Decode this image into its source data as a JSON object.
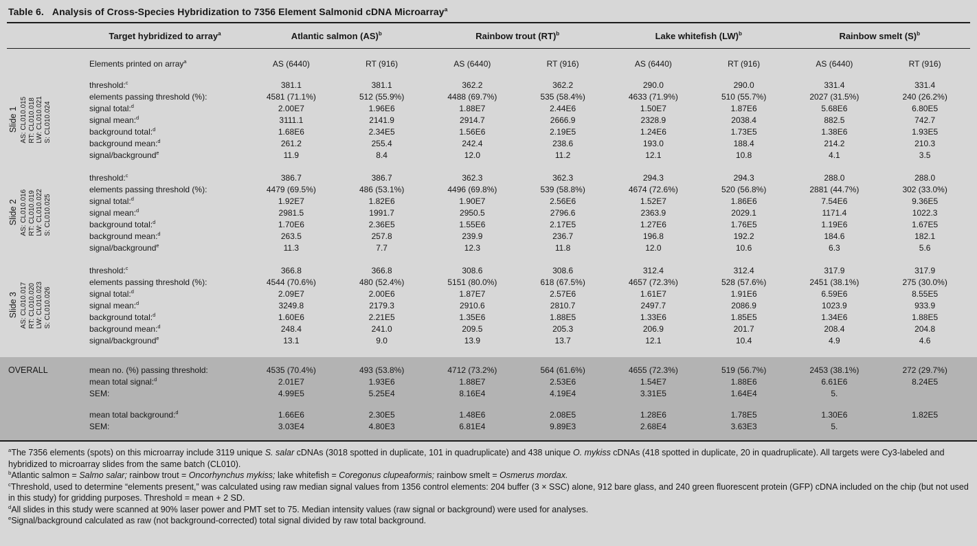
{
  "colors": {
    "page_bg": "#d7d7d7",
    "overall_band_bg": "#b3b3b3",
    "text": "#161616",
    "rule": "#1c1c1c"
  },
  "title": {
    "label": "Table 6.",
    "text": "Analysis of Cross-Species Hybridization to 7356 Element Salmonid cDNA Microarray",
    "sup": "a"
  },
  "header": {
    "target_col": {
      "text": "Target hybridized to array",
      "sup": "a"
    },
    "groups": [
      {
        "text": "Atlantic salmon (AS)",
        "sup": "b"
      },
      {
        "text": "Rainbow trout (RT)",
        "sup": "b"
      },
      {
        "text": "Lake whitefish (LW)",
        "sup": "b"
      },
      {
        "text": "Rainbow smelt (S)",
        "sup": "b"
      }
    ],
    "elements_label": {
      "text": "Elements printed on array",
      "sup": "a"
    },
    "subcolumns": [
      "AS (6440)",
      "RT (916)",
      "AS (6440)",
      "RT (916)",
      "AS (6440)",
      "RT (916)",
      "AS (6440)",
      "RT (916)"
    ]
  },
  "row_labels": [
    {
      "text": "threshold:",
      "sup": "c"
    },
    {
      "text": "elements passing threshold (%):",
      "sup": ""
    },
    {
      "text": "signal total:",
      "sup": "d"
    },
    {
      "text": "signal mean:",
      "sup": "d"
    },
    {
      "text": "background total:",
      "sup": "d"
    },
    {
      "text": "background mean:",
      "sup": "d"
    },
    {
      "text": "signal/background",
      "sup": "e"
    }
  ],
  "slides": [
    {
      "name": "Slide 1",
      "ids": [
        "AS: CL010.015",
        "RT: CL010.018",
        "LW: CL010.021",
        "S: CL010.024"
      ],
      "values": [
        [
          "381.1",
          "381.1",
          "362.2",
          "362.2",
          "290.0",
          "290.0",
          "331.4",
          "331.4"
        ],
        [
          "4581 (71.1%)",
          "512 (55.9%)",
          "4488 (69.7%)",
          "535 (58.4%)",
          "4633 (71.9%)",
          "510 (55.7%)",
          "2027 (31.5%)",
          "240 (26.2%)"
        ],
        [
          "2.00E7",
          "1.96E6",
          "1.88E7",
          "2.44E6",
          "1.50E7",
          "1.87E6",
          "5.68E6",
          "6.80E5"
        ],
        [
          "3111.1",
          "2141.9",
          "2914.7",
          "2666.9",
          "2328.9",
          "2038.4",
          "882.5",
          "742.7"
        ],
        [
          "1.68E6",
          "2.34E5",
          "1.56E6",
          "2.19E5",
          "1.24E6",
          "1.73E5",
          "1.38E6",
          "1.93E5"
        ],
        [
          "261.2",
          "255.4",
          "242.4",
          "238.6",
          "193.0",
          "188.4",
          "214.2",
          "210.3"
        ],
        [
          "11.9",
          "8.4",
          "12.0",
          "11.2",
          "12.1",
          "10.8",
          "4.1",
          "3.5"
        ]
      ]
    },
    {
      "name": "Slide 2",
      "ids": [
        "AS: CL010.016",
        "RT: CL010.019",
        "LW: CL010.022",
        "S: CL010.025"
      ],
      "values": [
        [
          "386.7",
          "386.7",
          "362.3",
          "362.3",
          "294.3",
          "294.3",
          "288.0",
          "288.0"
        ],
        [
          "4479 (69.5%)",
          "486 (53.1%)",
          "4496 (69.8%)",
          "539 (58.8%)",
          "4674 (72.6%)",
          "520 (56.8%)",
          "2881 (44.7%)",
          "302 (33.0%)"
        ],
        [
          "1.92E7",
          "1.82E6",
          "1.90E7",
          "2.56E6",
          "1.52E7",
          "1.86E6",
          "7.54E6",
          "9.36E5"
        ],
        [
          "2981.5",
          "1991.7",
          "2950.5",
          "2796.6",
          "2363.9",
          "2029.1",
          "1171.4",
          "1022.3"
        ],
        [
          "1.70E6",
          "2.36E5",
          "1.55E6",
          "2.17E5",
          "1.27E6",
          "1.76E5",
          "1.19E6",
          "1.67E5"
        ],
        [
          "263.5",
          "257.8",
          "239.9",
          "236.7",
          "196.8",
          "192.2",
          "184.6",
          "182.1"
        ],
        [
          "11.3",
          "7.7",
          "12.3",
          "11.8",
          "12.0",
          "10.6",
          "6.3",
          "5.6"
        ]
      ]
    },
    {
      "name": "Slide 3",
      "ids": [
        "AS: CL010.017",
        "RT: CL010.020",
        "LW: CL010.023",
        "S: CL010.026"
      ],
      "values": [
        [
          "366.8",
          "366.8",
          "308.6",
          "308.6",
          "312.4",
          "312.4",
          "317.9",
          "317.9"
        ],
        [
          "4544 (70.6%)",
          "480 (52.4%)",
          "5151 (80.0%)",
          "618 (67.5%)",
          "4657 (72.3%)",
          "528 (57.6%)",
          "2451 (38.1%)",
          "275 (30.0%)"
        ],
        [
          "2.09E7",
          "2.00E6",
          "1.87E7",
          "2.57E6",
          "1.61E7",
          "1.91E6",
          "6.59E6",
          "8.55E5"
        ],
        [
          "3249.8",
          "2179.3",
          "2910.6",
          "2810.7",
          "2497.7",
          "2086.9",
          "1023.9",
          "933.9"
        ],
        [
          "1.60E6",
          "2.21E5",
          "1.35E6",
          "1.88E5",
          "1.33E6",
          "1.85E5",
          "1.34E6",
          "1.88E5"
        ],
        [
          "248.4",
          "241.0",
          "209.5",
          "205.3",
          "206.9",
          "201.7",
          "208.4",
          "204.8"
        ],
        [
          "13.1",
          "9.0",
          "13.9",
          "13.7",
          "12.1",
          "10.4",
          "4.9",
          "4.6"
        ]
      ]
    }
  ],
  "overall": {
    "name": "OVERALL",
    "rows": [
      {
        "label": "mean no. (%) passing threshold:",
        "sup": "",
        "gap_before": false,
        "values": [
          "4535 (70.4%)",
          "493 (53.8%)",
          "4712 (73.2%)",
          "564 (61.6%)",
          "4655 (72.3%)",
          "519 (56.7%)",
          "2453 (38.1%)",
          "272 (29.7%)"
        ]
      },
      {
        "label": "mean total signal:",
        "sup": "d",
        "gap_before": false,
        "values": [
          "2.01E7",
          "1.93E6",
          "1.88E7",
          "2.53E6",
          "1.54E7",
          "1.88E6",
          "6.61E6",
          "8.24E5"
        ]
      },
      {
        "label": "SEM:",
        "sup": "",
        "gap_before": false,
        "values": [
          "4.99E5",
          "5.25E4",
          "8.16E4",
          "4.19E4",
          "3.31E5",
          "1.64E4",
          "5.",
          ""
        ]
      },
      {
        "label": "mean total background:",
        "sup": "d",
        "gap_before": true,
        "values": [
          "1.66E6",
          "2.30E5",
          "1.48E6",
          "2.08E5",
          "1.28E6",
          "1.78E5",
          "1.30E6",
          "1.82E5"
        ]
      },
      {
        "label": "SEM:",
        "sup": "",
        "gap_before": false,
        "values": [
          "3.03E4",
          "4.80E3",
          "6.81E4",
          "9.89E3",
          "2.68E4",
          "3.63E3",
          "5.",
          ""
        ]
      }
    ]
  },
  "footnotes": [
    {
      "sup": "a",
      "segments": [
        {
          "t": "The 7356 elements (spots) on this microarray include 3119 unique "
        },
        {
          "t": "S. salar",
          "i": true
        },
        {
          "t": " cDNAs (3018 spotted in duplicate, 101 in quadruplicate) and 438 unique "
        },
        {
          "t": "O. mykiss",
          "i": true
        },
        {
          "t": " cDNAs (418 spotted in duplicate, 20 in quadruplicate). All targets were Cy3-labeled and hybridized to microarray slides from the same batch (CL010)."
        }
      ]
    },
    {
      "sup": "b",
      "segments": [
        {
          "t": "Atlantic salmon = "
        },
        {
          "t": "Salmo salar;",
          "i": true
        },
        {
          "t": " rainbow trout = "
        },
        {
          "t": "Oncorhynchus mykiss;",
          "i": true
        },
        {
          "t": " lake whitefish = "
        },
        {
          "t": "Coregonus clupeaformis;",
          "i": true
        },
        {
          "t": " rainbow smelt = "
        },
        {
          "t": "Osmerus mordax.",
          "i": true
        }
      ]
    },
    {
      "sup": "c",
      "segments": [
        {
          "t": "Threshold, used to determine “elements present,” was calculated using raw median signal values from 1356 control elements: 204 buffer (3 × SSC) alone, 912 bare glass, and 240 green fluorescent protein (GFP) cDNA included on the chip (but not used in this study) for gridding purposes. Threshold = mean + 2 SD."
        }
      ]
    },
    {
      "sup": "d",
      "segments": [
        {
          "t": "All slides in this study were scanned at 90% laser power and PMT set to 75. Median intensity values (raw signal or background) were used for analyses."
        }
      ]
    },
    {
      "sup": "e",
      "segments": [
        {
          "t": "Signal/background calculated as raw (not background-corrected) total signal divided by raw total background."
        }
      ]
    }
  ]
}
